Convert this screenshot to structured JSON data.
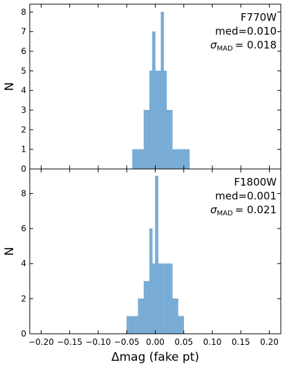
{
  "chart_data": {
    "type": "bar",
    "shared_x": {
      "label": "Δmag (fake pt)",
      "range": [
        -0.22,
        0.22
      ],
      "ticks": [
        -0.2,
        -0.15,
        -0.1,
        -0.05,
        0.0,
        0.05,
        0.1,
        0.15,
        0.2
      ],
      "tick_labels": [
        "−0.20",
        "−0.15",
        "−0.10",
        "−0.05",
        "0.00",
        "0.05",
        "0.10",
        "0.15",
        "0.20"
      ]
    },
    "color": "#7aadd6",
    "panels": [
      {
        "filter": "F770W",
        "med_text": "med=0.010",
        "sigma_value": "= 0.018",
        "ylabel": "N",
        "ylim": [
          0,
          8.4
        ],
        "yticks": [
          0,
          1,
          2,
          3,
          4,
          5,
          6,
          7,
          8
        ],
        "bins": [
          {
            "x0": -0.04,
            "x1": -0.02,
            "count": 1
          },
          {
            "x0": -0.02,
            "x1": -0.01,
            "count": 3
          },
          {
            "x0": -0.01,
            "x1": -0.005,
            "count": 5
          },
          {
            "x0": -0.005,
            "x1": 0.0,
            "count": 7
          },
          {
            "x0": 0.0,
            "x1": 0.005,
            "count": 5
          },
          {
            "x0": 0.005,
            "x1": 0.01,
            "count": 5
          },
          {
            "x0": 0.01,
            "x1": 0.015,
            "count": 8
          },
          {
            "x0": 0.015,
            "x1": 0.02,
            "count": 5
          },
          {
            "x0": 0.02,
            "x1": 0.03,
            "count": 3
          },
          {
            "x0": 0.03,
            "x1": 0.04,
            "count": 1
          },
          {
            "x0": 0.04,
            "x1": 0.05,
            "count": 1
          },
          {
            "x0": 0.05,
            "x1": 0.06,
            "count": 1
          }
        ]
      },
      {
        "filter": "F1800W",
        "med_text": "med=0.001",
        "sigma_value": "= 0.021",
        "ylabel": "N",
        "ylim": [
          0,
          9.4
        ],
        "yticks": [
          0,
          2,
          4,
          6,
          8
        ],
        "bins": [
          {
            "x0": -0.05,
            "x1": -0.04,
            "count": 1
          },
          {
            "x0": -0.04,
            "x1": -0.03,
            "count": 1
          },
          {
            "x0": -0.03,
            "x1": -0.02,
            "count": 2
          },
          {
            "x0": -0.02,
            "x1": -0.01,
            "count": 3
          },
          {
            "x0": -0.01,
            "x1": -0.005,
            "count": 6
          },
          {
            "x0": -0.005,
            "x1": 0.0,
            "count": 4
          },
          {
            "x0": 0.0,
            "x1": 0.005,
            "count": 9
          },
          {
            "x0": 0.005,
            "x1": 0.01,
            "count": 4
          },
          {
            "x0": 0.01,
            "x1": 0.02,
            "count": 4
          },
          {
            "x0": 0.02,
            "x1": 0.03,
            "count": 4
          },
          {
            "x0": 0.03,
            "x1": 0.04,
            "count": 2
          },
          {
            "x0": 0.04,
            "x1": 0.05,
            "count": 1
          }
        ]
      }
    ]
  }
}
